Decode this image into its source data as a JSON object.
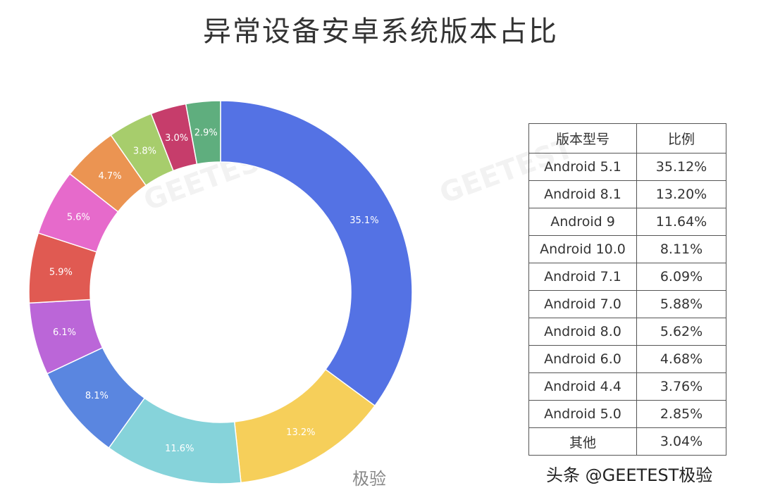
{
  "chart_data": {
    "type": "pie",
    "title": "异常设备安卓系统版本占比",
    "donut": true,
    "slices": [
      {
        "label": "Android 5.1",
        "value": 35.1,
        "display": "35.1%",
        "color": "#5472e4"
      },
      {
        "label": "Android 8.1",
        "value": 13.2,
        "display": "13.2%",
        "color": "#f6cf5a"
      },
      {
        "label": "Android 9",
        "value": 11.6,
        "display": "11.6%",
        "color": "#86d3da"
      },
      {
        "label": "Android 10.0",
        "value": 8.1,
        "display": "8.1%",
        "color": "#5a86e0"
      },
      {
        "label": "Android 7.1",
        "value": 6.1,
        "display": "6.1%",
        "color": "#bb66d8"
      },
      {
        "label": "Android 7.0",
        "value": 5.9,
        "display": "5.9%",
        "color": "#e05a52"
      },
      {
        "label": "Android 8.0",
        "value": 5.6,
        "display": "5.6%",
        "color": "#e66acb"
      },
      {
        "label": "Android 6.0",
        "value": 4.7,
        "display": "4.7%",
        "color": "#eb9452"
      },
      {
        "label": "Android 4.4",
        "value": 3.8,
        "display": "3.8%",
        "color": "#a7cd6c"
      },
      {
        "label": "其他",
        "value": 3.0,
        "display": "3.0%",
        "color": "#c63d6b"
      },
      {
        "label": "Android 5.0",
        "value": 2.9,
        "display": "2.9%",
        "color": "#5fae7e"
      }
    ],
    "table": {
      "headers": [
        "版本型号",
        "比例"
      ],
      "rows": [
        [
          "Android 5.1",
          "35.12%"
        ],
        [
          "Android 8.1",
          "13.20%"
        ],
        [
          "Android 9",
          "11.64%"
        ],
        [
          "Android 10.0",
          "8.11%"
        ],
        [
          "Android 7.1",
          "6.09%"
        ],
        [
          "Android 7.0",
          "5.88%"
        ],
        [
          "Android 8.0",
          "5.62%"
        ],
        [
          "Android 6.0",
          "4.68%"
        ],
        [
          "Android 4.4",
          "3.76%"
        ],
        [
          "Android 5.0",
          "2.85%"
        ],
        [
          "其他",
          "3.04%"
        ]
      ]
    }
  },
  "watermarks": {
    "weibo": "极验",
    "source": "头条 @GEETEST极验",
    "ghost": "GEETEST"
  }
}
